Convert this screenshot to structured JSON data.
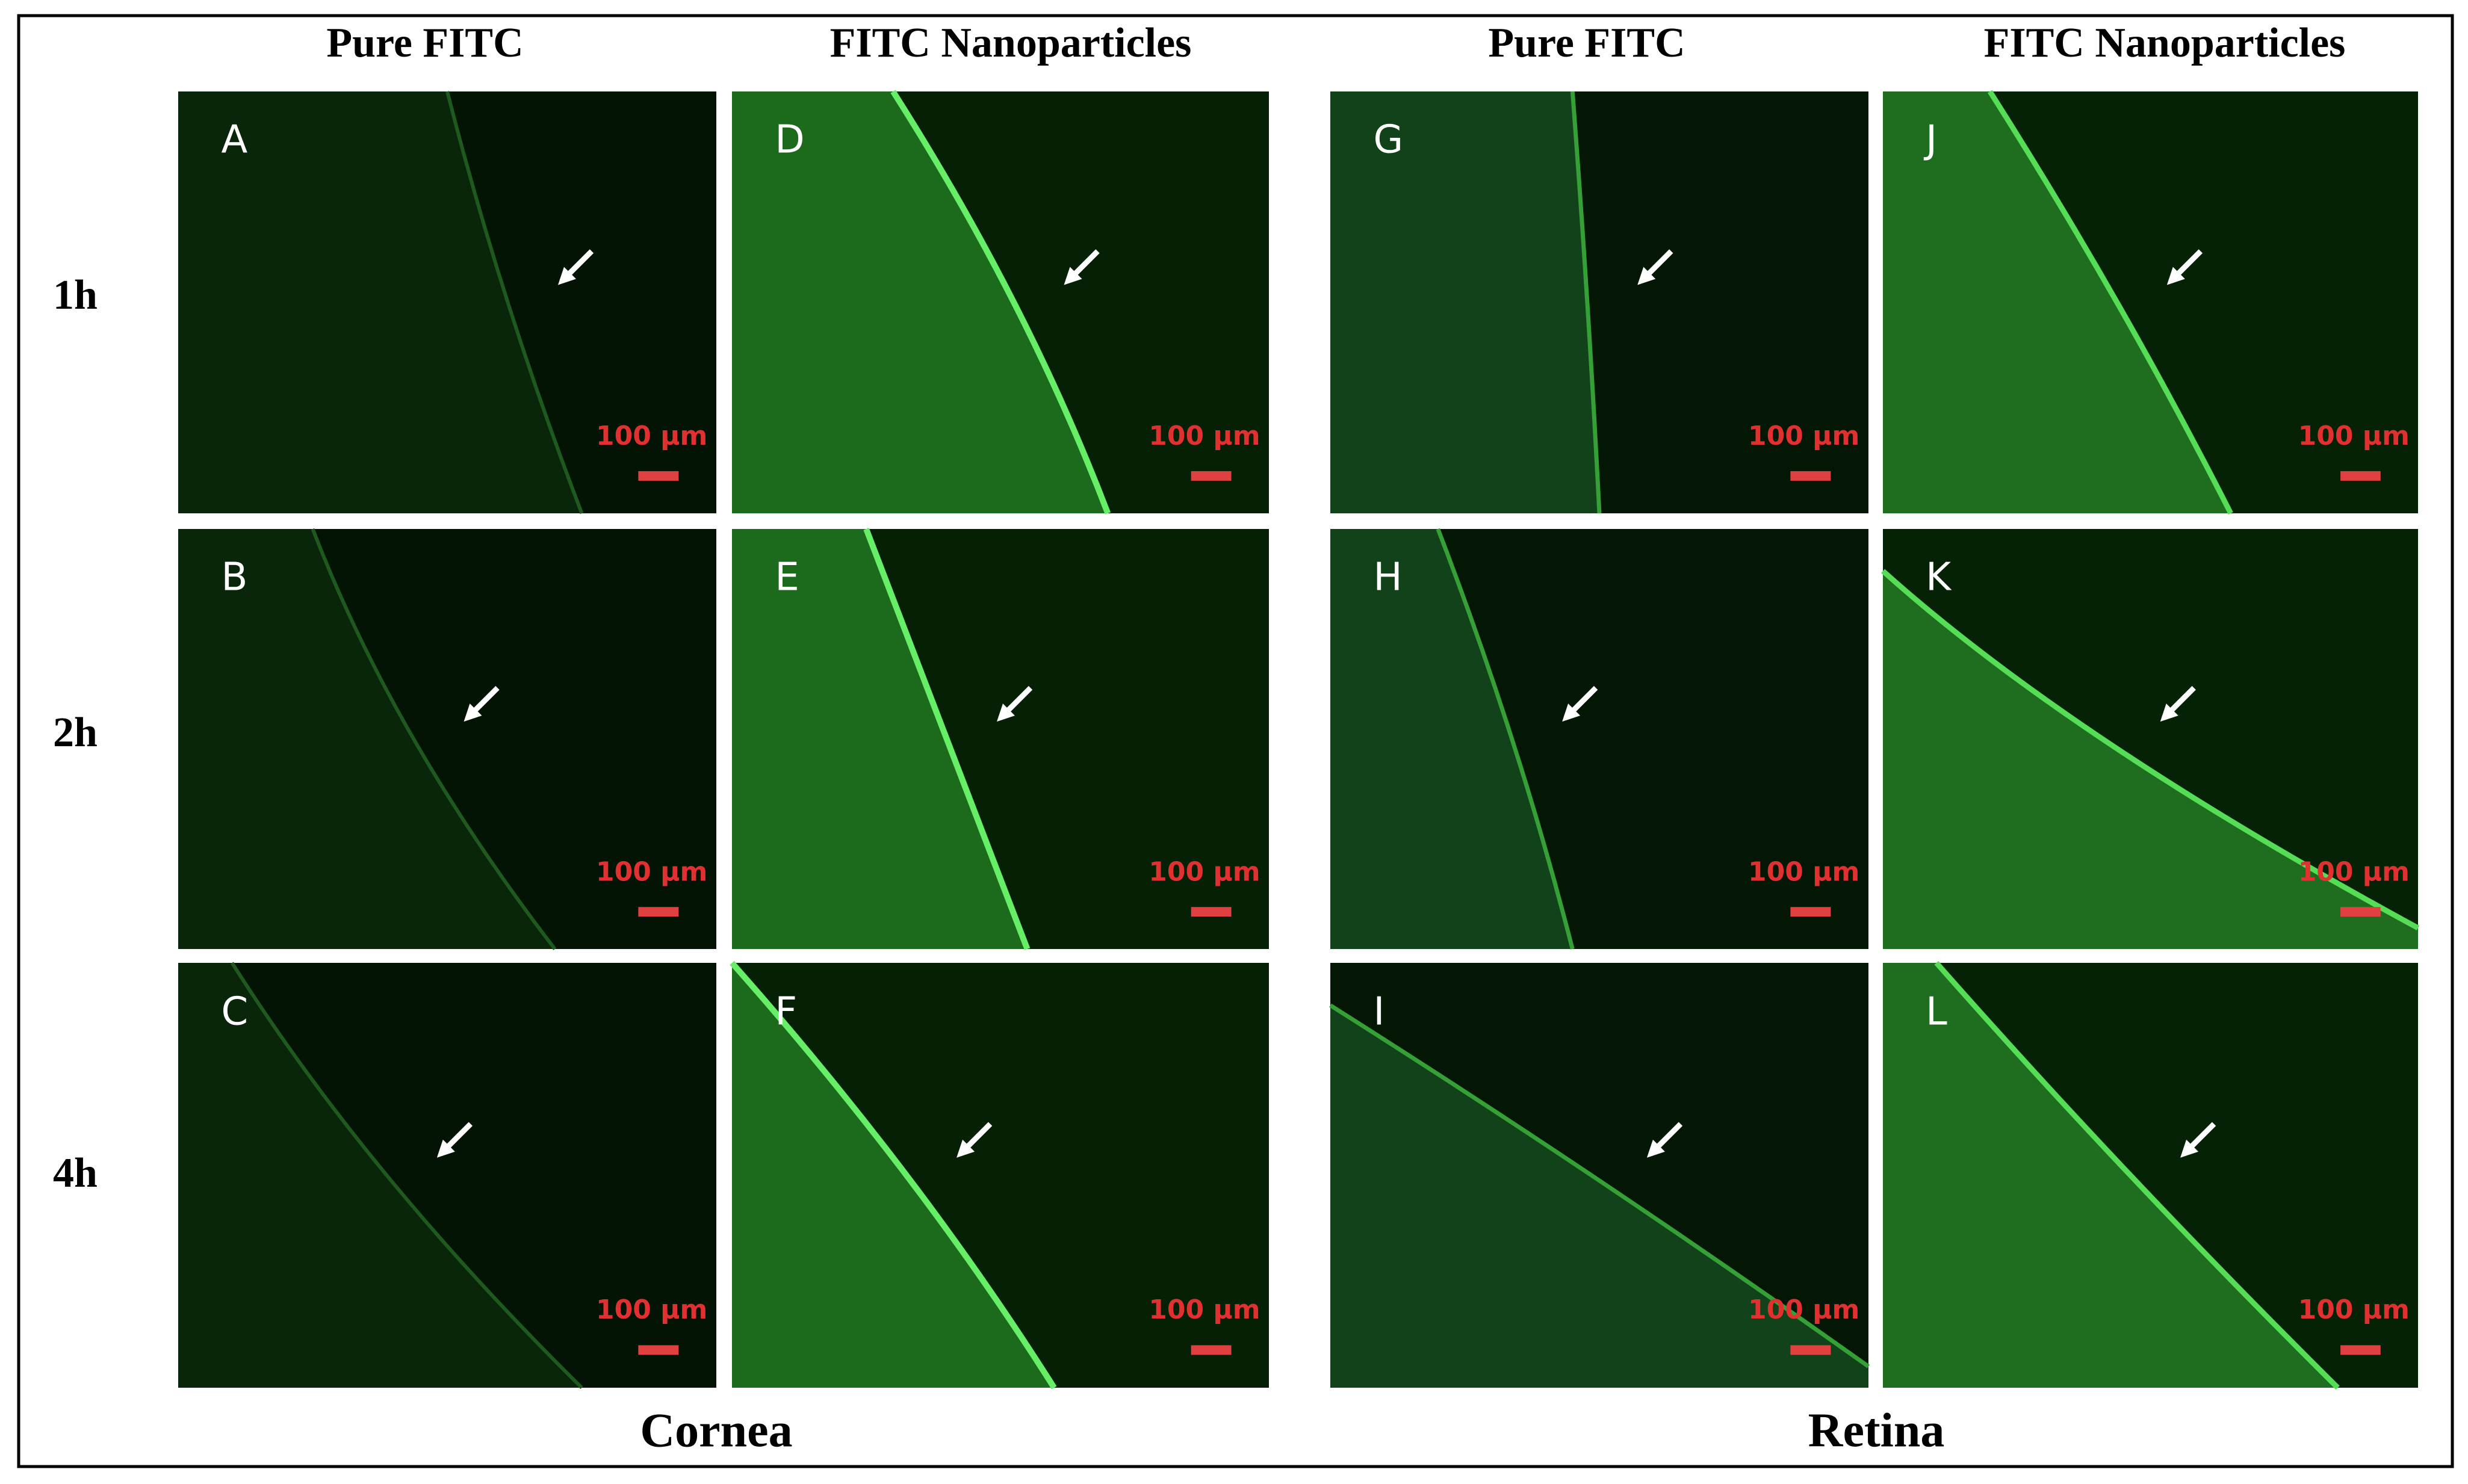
{
  "columns": [
    "Pure FITC",
    "FITC Nanoparticles",
    "Pure FITC",
    "FITC Nanoparticles"
  ],
  "rows": [
    "1h",
    "2h",
    "4h"
  ],
  "panels": [
    [
      {
        "letter": "A",
        "scale": "100 µm"
      },
      {
        "letter": "B",
        "scale": "100 µm"
      },
      {
        "letter": "C",
        "scale": "100 µm"
      }
    ],
    [
      {
        "letter": "D",
        "scale": "100 µm"
      },
      {
        "letter": "E",
        "scale": "100 µm"
      },
      {
        "letter": "F",
        "scale": "100 µm"
      }
    ],
    [
      {
        "letter": "G",
        "scale": "100 µm"
      },
      {
        "letter": "H",
        "scale": "100 µm"
      },
      {
        "letter": "I",
        "scale": "100 µm"
      }
    ],
    [
      {
        "letter": "J",
        "scale": "100 µm"
      },
      {
        "letter": "K",
        "scale": "100 µm"
      },
      {
        "letter": "L",
        "scale": "100 µm"
      }
    ]
  ],
  "groups": [
    "Cornea",
    "Retina"
  ]
}
